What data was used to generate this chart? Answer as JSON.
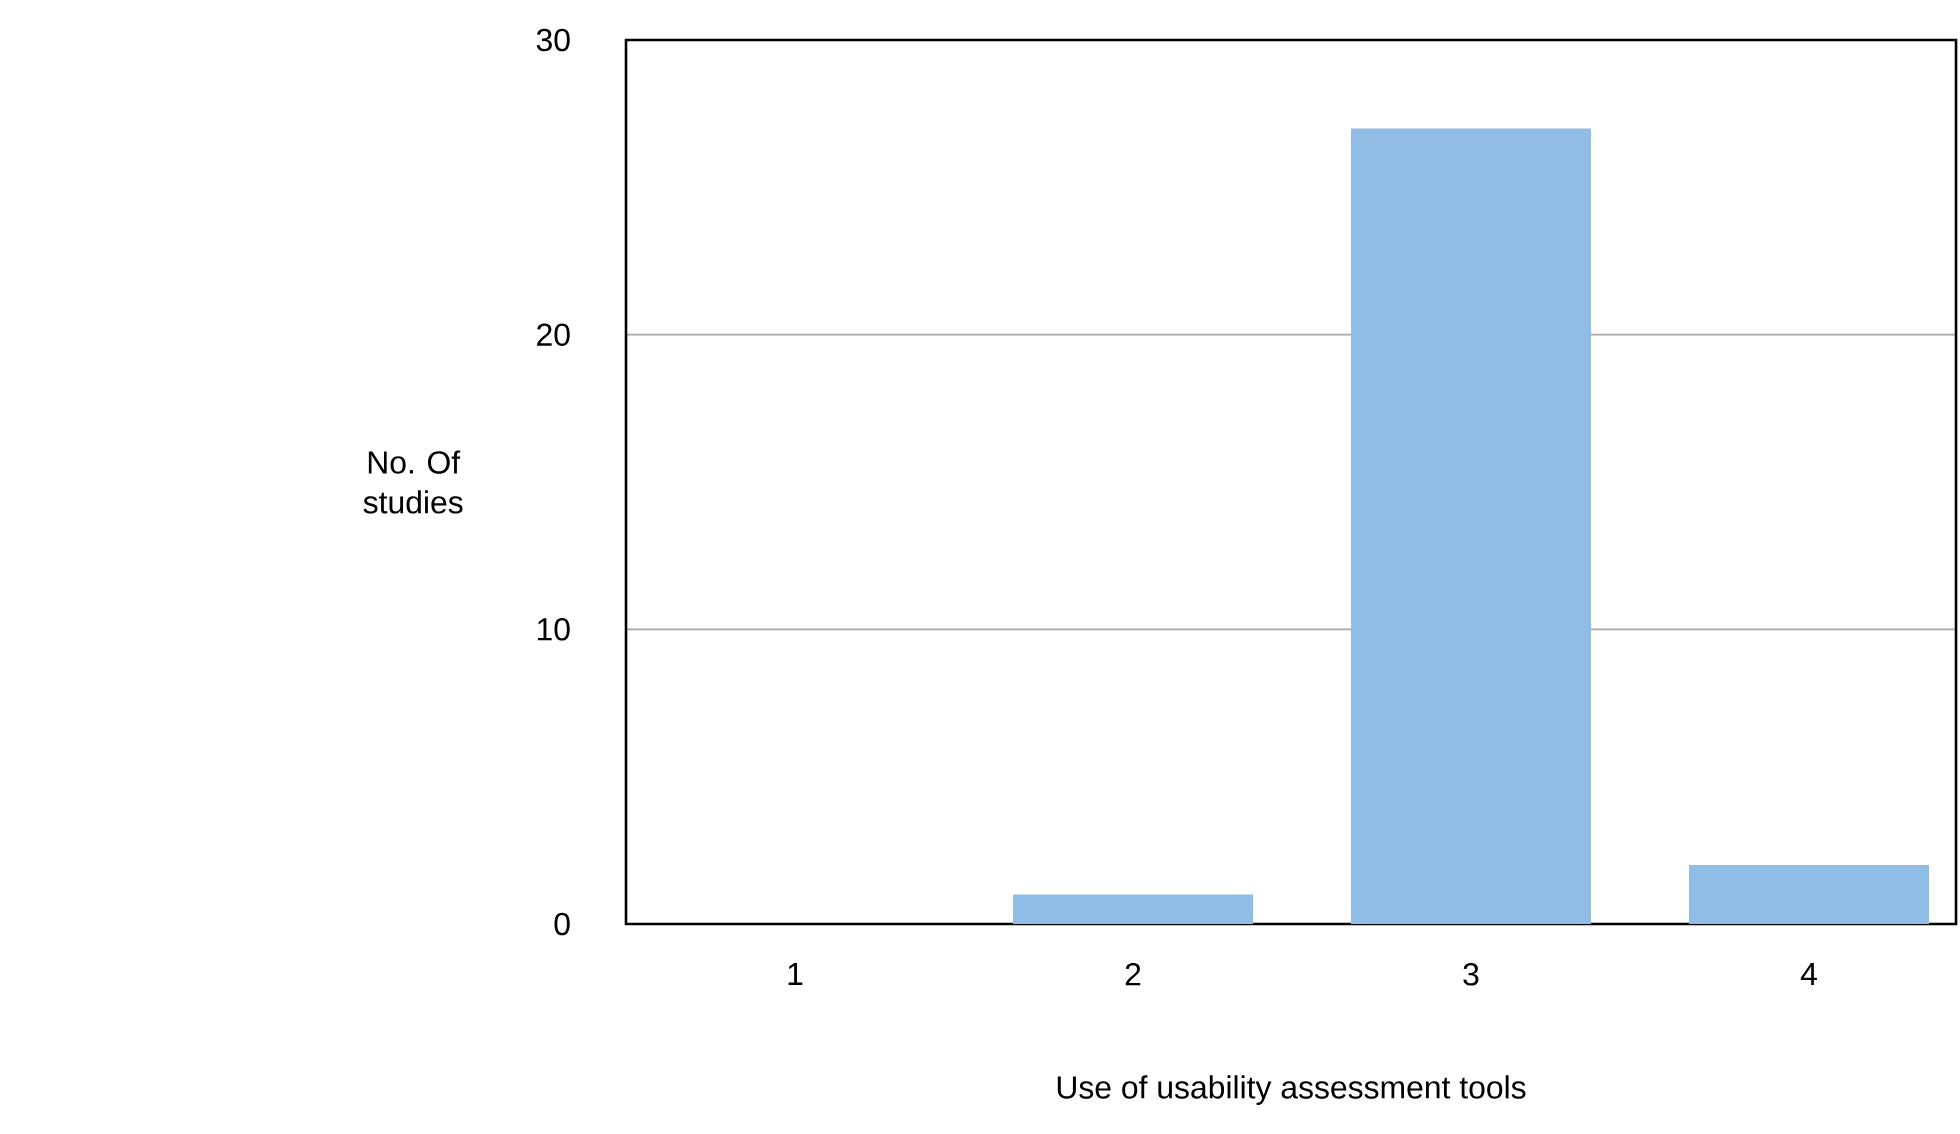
{
  "chart_data": {
    "type": "bar",
    "xlabel": "Use of usability assessment tools",
    "ylabel": "No. Of studies",
    "categories": [
      "1",
      "2",
      "3",
      "4"
    ],
    "values": [
      0,
      1,
      27,
      2
    ],
    "color": "#8fbde6",
    "ylim": [
      0,
      30
    ],
    "yticks": [
      0,
      10,
      20,
      30
    ],
    "grid": "y"
  }
}
